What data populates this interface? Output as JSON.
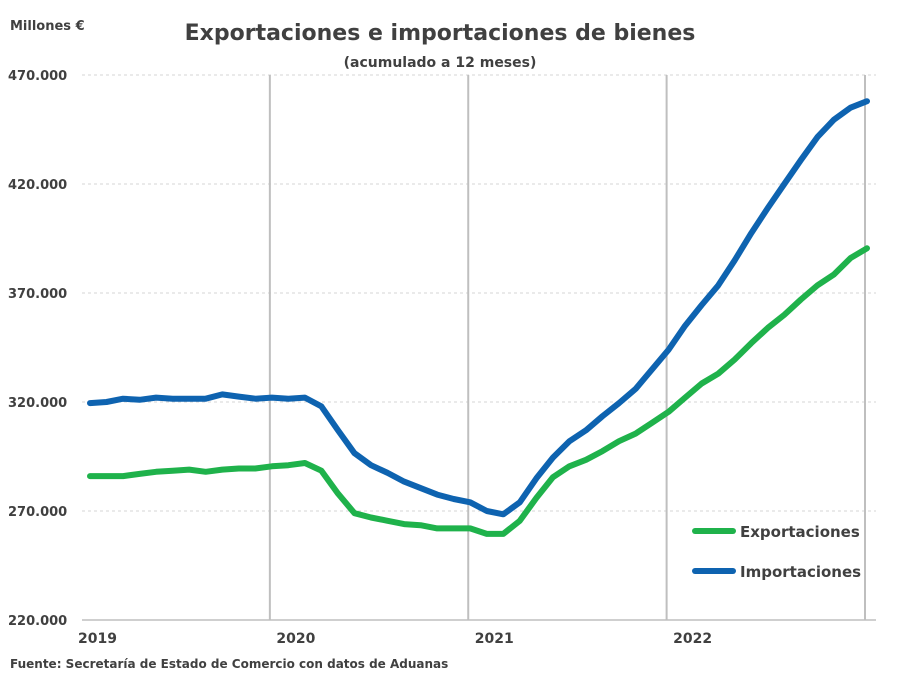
{
  "chart_data": {
    "type": "line",
    "title": "Exportaciones e importaciones de bienes",
    "subtitle": "(acumulado a 12 meses)",
    "ylabel": "Millones €",
    "ylim": [
      220000,
      470000
    ],
    "yticks": [
      220000,
      270000,
      320000,
      370000,
      420000,
      470000
    ],
    "ytick_labels": [
      "220.000",
      "270.000",
      "320.000",
      "370.000",
      "420.000",
      "470.000"
    ],
    "xlim": [
      0,
      47
    ],
    "year_labels": [
      "2019",
      "2020",
      "2021",
      "2022"
    ],
    "year_positions": [
      0,
      12,
      24,
      36
    ],
    "year_dividers": [
      11,
      23,
      35,
      47
    ],
    "legend_position": "bottom-right",
    "source": "Fuente: Secretaría de Estado de Comercio con datos de Aduanas",
    "series": [
      {
        "name": "Exportaciones",
        "color": "#1fb24b",
        "values": [
          286000,
          286000,
          286000,
          287000,
          288000,
          288500,
          289000,
          288000,
          289000,
          289500,
          289500,
          290500,
          291000,
          292000,
          288500,
          278000,
          269000,
          267000,
          265500,
          264000,
          263500,
          262000,
          262000,
          262000,
          259500,
          259500,
          265500,
          276000,
          285500,
          290500,
          293500,
          297500,
          302000,
          305500,
          310500,
          315500,
          322000,
          328500,
          333000,
          339500,
          347000,
          354000,
          360000,
          367000,
          373500,
          378500,
          386000,
          390500
        ]
      },
      {
        "name": "Importaciones",
        "color": "#0e63b0",
        "values": [
          319500,
          320000,
          321500,
          321000,
          322000,
          321500,
          321500,
          321500,
          323500,
          322500,
          321500,
          322000,
          321500,
          322000,
          318000,
          307000,
          296500,
          291000,
          287500,
          283500,
          280500,
          277500,
          275500,
          274000,
          270000,
          268500,
          274000,
          285000,
          294500,
          302000,
          307000,
          313500,
          319500,
          326000,
          335000,
          344000,
          355000,
          364500,
          373500,
          385000,
          397500,
          409000,
          420000,
          431000,
          441500,
          449500,
          455000,
          458000
        ]
      }
    ]
  }
}
